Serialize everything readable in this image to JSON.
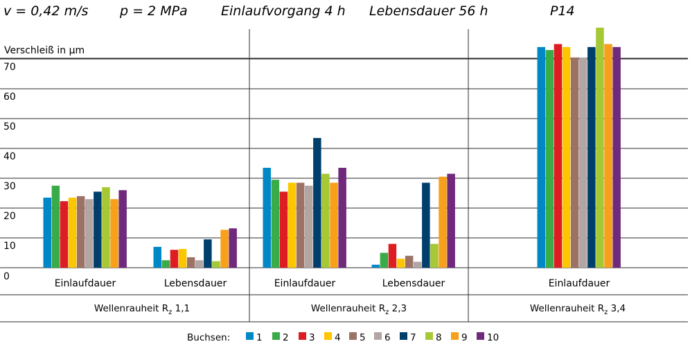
{
  "header": {
    "parts": [
      "v = 0,42 m/s",
      "p = 2 MPa",
      "Einlaufvorgang 4 h",
      "Lebensdauer 56 h",
      "P14"
    ]
  },
  "chart_data": {
    "type": "bar",
    "ylabel": "Verschleiß in µm",
    "ylim": [
      0,
      70
    ],
    "yticks": [
      0,
      10,
      20,
      30,
      40,
      50,
      60,
      70
    ],
    "grid": true,
    "legend": {
      "title": "Buchsen:",
      "placement": "bottom"
    },
    "series": [
      {
        "name": "1",
        "color": "#0088c6"
      },
      {
        "name": "2",
        "color": "#3aab49"
      },
      {
        "name": "3",
        "color": "#dd1d21"
      },
      {
        "name": "4",
        "color": "#fcc700"
      },
      {
        "name": "5",
        "color": "#9d7266"
      },
      {
        "name": "6",
        "color": "#b2a6a5"
      },
      {
        "name": "7",
        "color": "#003f6c"
      },
      {
        "name": "8",
        "color": "#a6c835"
      },
      {
        "name": "9",
        "color": "#f8a01a"
      },
      {
        "name": "10",
        "color": "#6f2a7c"
      }
    ],
    "groups": [
      {
        "label_main": "Wellenrauheit R",
        "label_sub": "z",
        "label_value": " 1,1",
        "categories": [
          {
            "label": "Einlaufdauer",
            "values": [
              23.5,
              27.5,
              22.3,
              23.5,
              24,
              23,
              25.5,
              27,
              23,
              26
            ]
          },
          {
            "label": "Lebensdauer",
            "values": [
              7,
              2.5,
              6,
              6.3,
              3.5,
              2.5,
              9.5,
              2.2,
              12.7,
              13.2
            ]
          }
        ]
      },
      {
        "label_main": "Wellenrauheit R",
        "label_sub": "z",
        "label_value": " 2,3",
        "categories": [
          {
            "label": "Einlaufdauer",
            "values": [
              33.5,
              29.5,
              25.5,
              28.5,
              28.5,
              27.5,
              43.5,
              31.5,
              28.5,
              33.5
            ]
          },
          {
            "label": "Lebensdauer",
            "values": [
              1,
              5,
              8,
              3,
              4,
              2,
              28.5,
              8,
              30.5,
              31.5
            ]
          }
        ]
      },
      {
        "label_main": "Wellenrauheit R",
        "label_sub": "z",
        "label_value": " 3,4",
        "categories": [
          {
            "label": "Einlaufdauer",
            "values": [
              74,
              73,
              75,
              74,
              70.5,
              70.5,
              74,
              80.5,
              75,
              74
            ]
          }
        ]
      }
    ]
  }
}
